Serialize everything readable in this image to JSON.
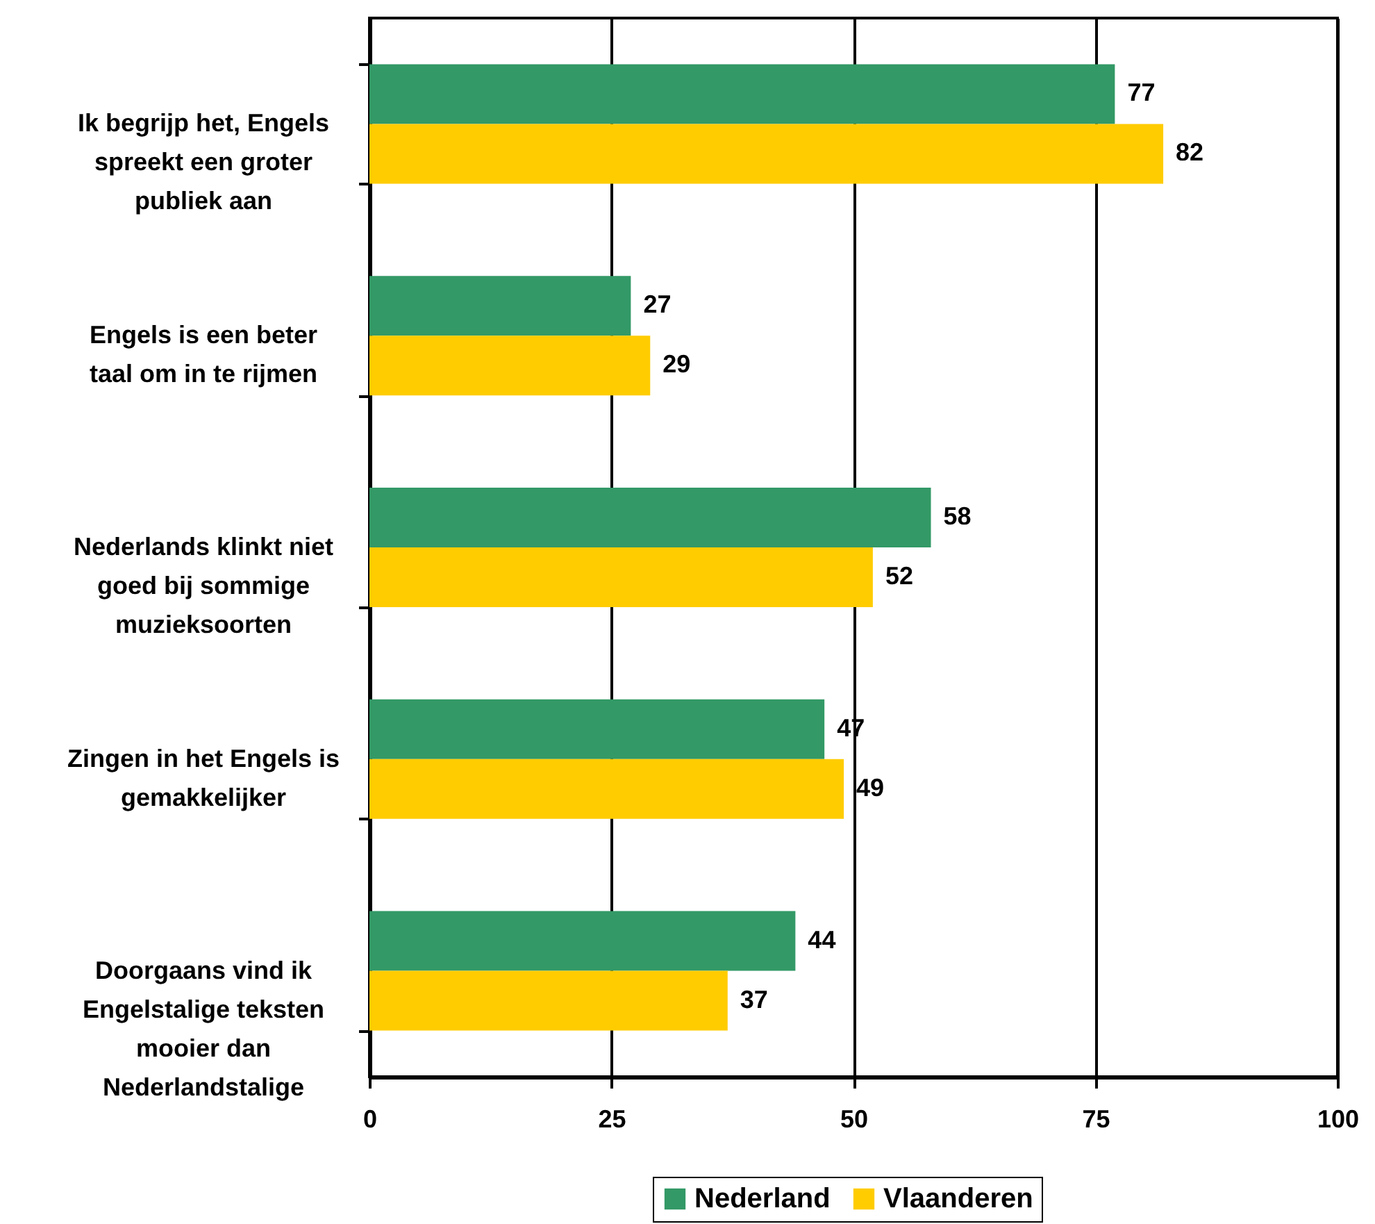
{
  "chart_data": {
    "type": "bar",
    "orientation": "horizontal",
    "categories": [
      "Ik begrijp het, Engels spreekt een groter publiek aan",
      "Engels is een beter taal om in te rijmen",
      "Nederlands klinkt niet goed bij sommige muzieksoorten",
      "Zingen in het Engels is gemakkelijker",
      "Doorgaans vind ik Engelstalige teksten mooier dan Nederlandstalige"
    ],
    "series": [
      {
        "name": "Nederland",
        "color": "#339966",
        "values": [
          77,
          27,
          58,
          47,
          44
        ]
      },
      {
        "name": "Vlaanderen",
        "color": "#ffcc00",
        "values": [
          82,
          29,
          52,
          49,
          37
        ]
      }
    ],
    "xlim": [
      0,
      100
    ],
    "xticks": [
      0,
      25,
      50,
      75,
      100
    ],
    "grid": "x",
    "legend": "bottom",
    "data_labels": true
  }
}
